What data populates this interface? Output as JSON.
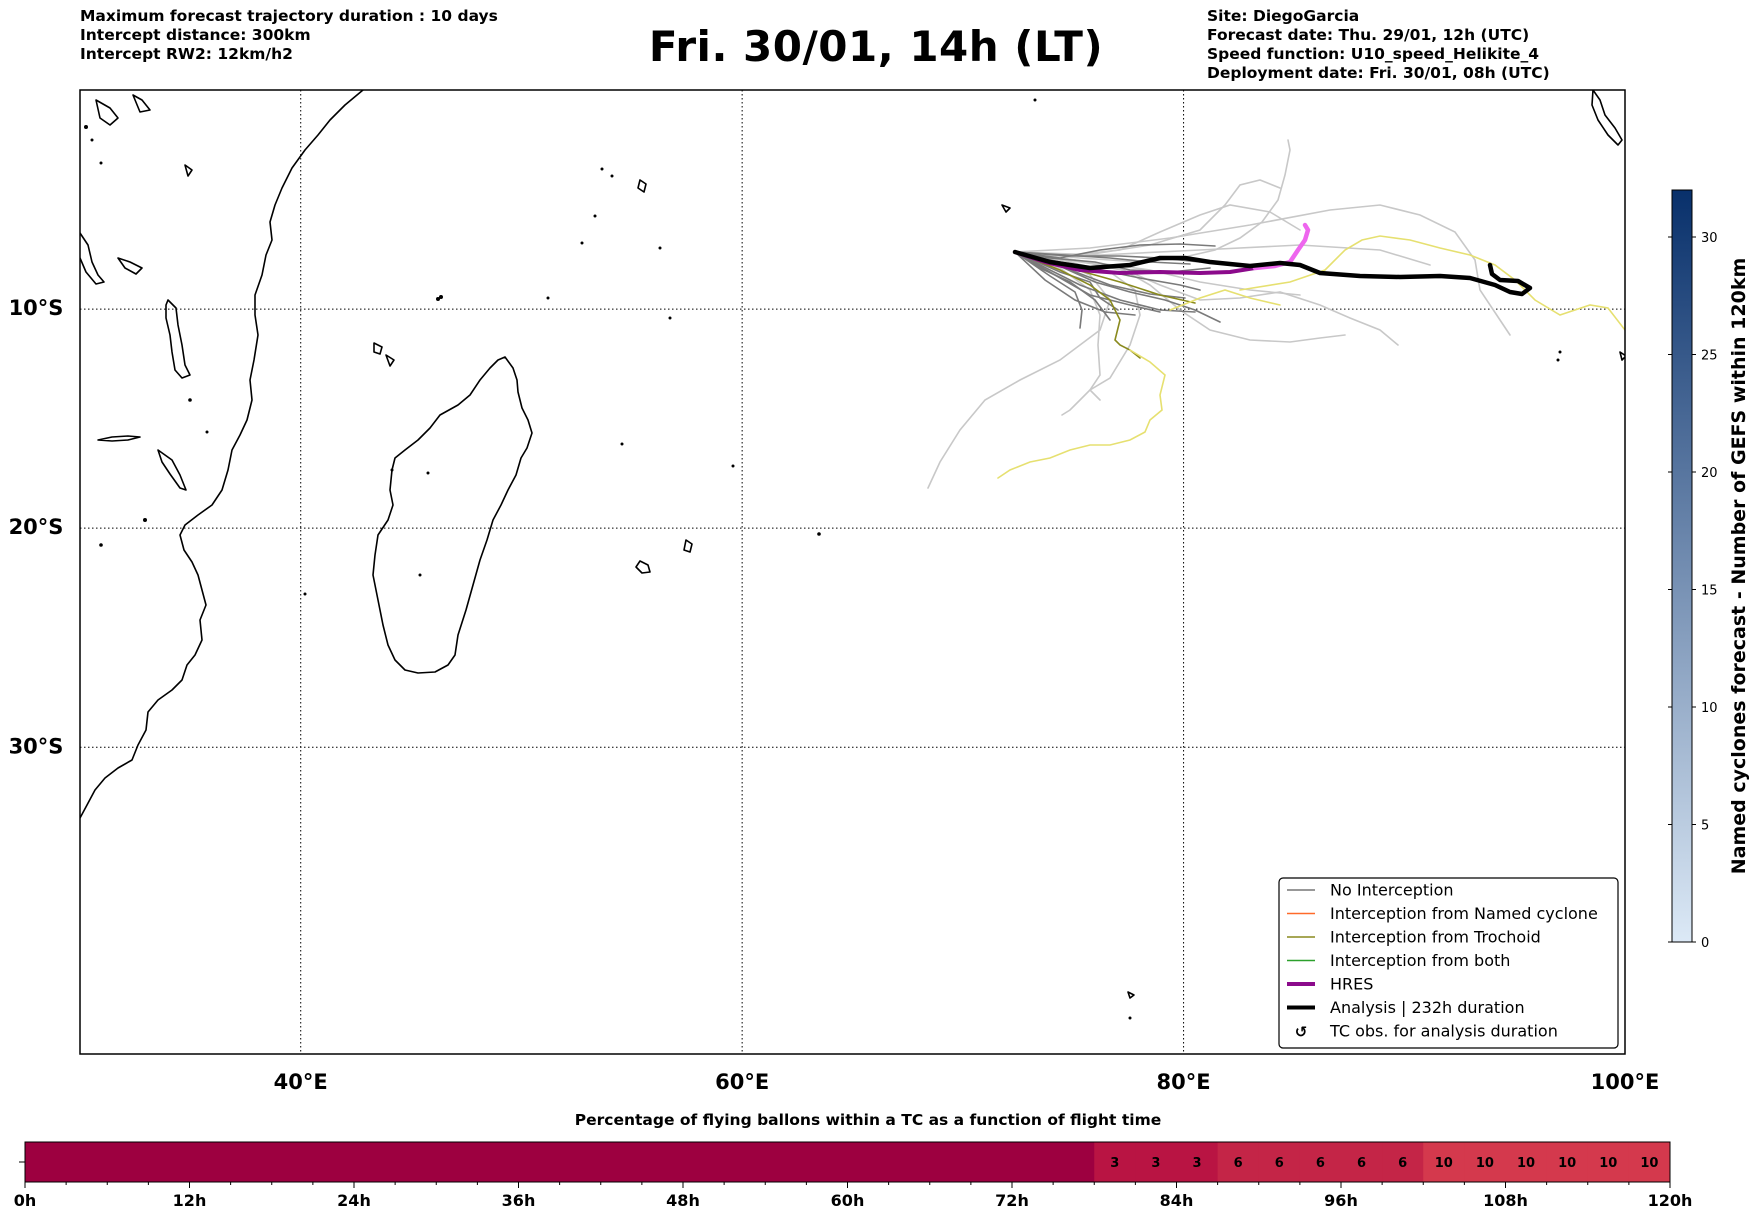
{
  "header": {
    "left_lines": [
      "Maximum forecast trajectory duration : 10 days",
      "Intercept distance: 300km",
      "Intercept RW2: 12km/h2"
    ],
    "title": "Fri. 30/01, 14h (LT)",
    "right_lines": [
      "Site: DiegoGarcia",
      "Forecast date: Thu. 29/01, 12h (UTC)",
      "Speed function: U10_speed_Helikite_4",
      "Deployment date: Fri. 30/01, 08h (UTC)"
    ]
  },
  "map": {
    "lon_range": [
      30,
      100
    ],
    "lat_range": [
      0,
      -44
    ],
    "lon_ticks": [
      {
        "value": 40,
        "label": "40°E"
      },
      {
        "value": 60,
        "label": "60°E"
      },
      {
        "value": 80,
        "label": "80°E"
      },
      {
        "value": 100,
        "label": "100°E"
      }
    ],
    "lat_ticks": [
      {
        "value": -10,
        "label": "10°S"
      },
      {
        "value": -20,
        "label": "20°S"
      },
      {
        "value": -30,
        "label": "30°S"
      }
    ],
    "gridlines": "dotted",
    "colors": {
      "no_interception": "#777777",
      "ensemble_light": "#c8c8c8",
      "named_cyclone": "#ff6a2a",
      "trochoid": "#8a8a1e",
      "both": "#2ca02c",
      "hres": "#8b0a8b",
      "hres_forecast": "#ee66ee",
      "analysis": "#000000",
      "yellow_track": "#e6e070"
    }
  },
  "legend": {
    "position": "lower-right",
    "items": [
      {
        "label": "No Interception",
        "color": "#777777",
        "style": "line-thin"
      },
      {
        "label": "Interception from Named cyclone",
        "color": "#ff6a2a",
        "style": "line-thin"
      },
      {
        "label": "Interception from Trochoid",
        "color": "#8a8a1e",
        "style": "line-thin"
      },
      {
        "label": "Interception from both",
        "color": "#2ca02c",
        "style": "line-thin"
      },
      {
        "label": "HRES",
        "color": "#8b0a8b",
        "style": "line-thick"
      },
      {
        "label": "Analysis | 232h duration",
        "color": "#000000",
        "style": "line-thick"
      },
      {
        "label": "TC obs. for analysis duration",
        "color": "#000000",
        "style": "marker",
        "marker": "↺"
      }
    ]
  },
  "colorbar": {
    "label": "Named cyclones forecast - Number of GEFS within 120km",
    "min": 0,
    "max": 32,
    "ticks": [
      0,
      5,
      10,
      15,
      20,
      25,
      30
    ],
    "color_low": "#dce9f6",
    "color_high": "#08306b"
  },
  "chart_data": {
    "type": "heatmap",
    "title": "Percentage of flying ballons within a TC as a function of flight time",
    "x_range_hours": [
      0,
      120
    ],
    "x_ticks": [
      "0h",
      "12h",
      "24h",
      "36h",
      "48h",
      "60h",
      "72h",
      "84h",
      "96h",
      "108h",
      "120h"
    ],
    "cell_hours": 3,
    "cells": [
      {
        "start_h": 0,
        "end_h": 78,
        "value": 0,
        "label": "",
        "color": "#9d0040"
      },
      {
        "start_h": 78,
        "end_h": 81,
        "value": 3,
        "label": "3",
        "color": "#b91443"
      },
      {
        "start_h": 81,
        "end_h": 84,
        "value": 3,
        "label": "3",
        "color": "#b91443"
      },
      {
        "start_h": 84,
        "end_h": 87,
        "value": 3,
        "label": "3",
        "color": "#b91443"
      },
      {
        "start_h": 87,
        "end_h": 90,
        "value": 6,
        "label": "6",
        "color": "#c42547"
      },
      {
        "start_h": 90,
        "end_h": 93,
        "value": 6,
        "label": "6",
        "color": "#c42547"
      },
      {
        "start_h": 93,
        "end_h": 96,
        "value": 6,
        "label": "6",
        "color": "#c42547"
      },
      {
        "start_h": 96,
        "end_h": 99,
        "value": 6,
        "label": "6",
        "color": "#c42547"
      },
      {
        "start_h": 99,
        "end_h": 102,
        "value": 6,
        "label": "6",
        "color": "#c42547"
      },
      {
        "start_h": 102,
        "end_h": 105,
        "value": 10,
        "label": "10",
        "color": "#d4394d"
      },
      {
        "start_h": 105,
        "end_h": 108,
        "value": 10,
        "label": "10",
        "color": "#d4394d"
      },
      {
        "start_h": 108,
        "end_h": 111,
        "value": 10,
        "label": "10",
        "color": "#d4394d"
      },
      {
        "start_h": 111,
        "end_h": 114,
        "value": 10,
        "label": "10",
        "color": "#d4394d"
      },
      {
        "start_h": 114,
        "end_h": 117,
        "value": 10,
        "label": "10",
        "color": "#d4394d"
      },
      {
        "start_h": 117,
        "end_h": 120,
        "value": 10,
        "label": "10",
        "color": "#d4394d"
      }
    ]
  }
}
